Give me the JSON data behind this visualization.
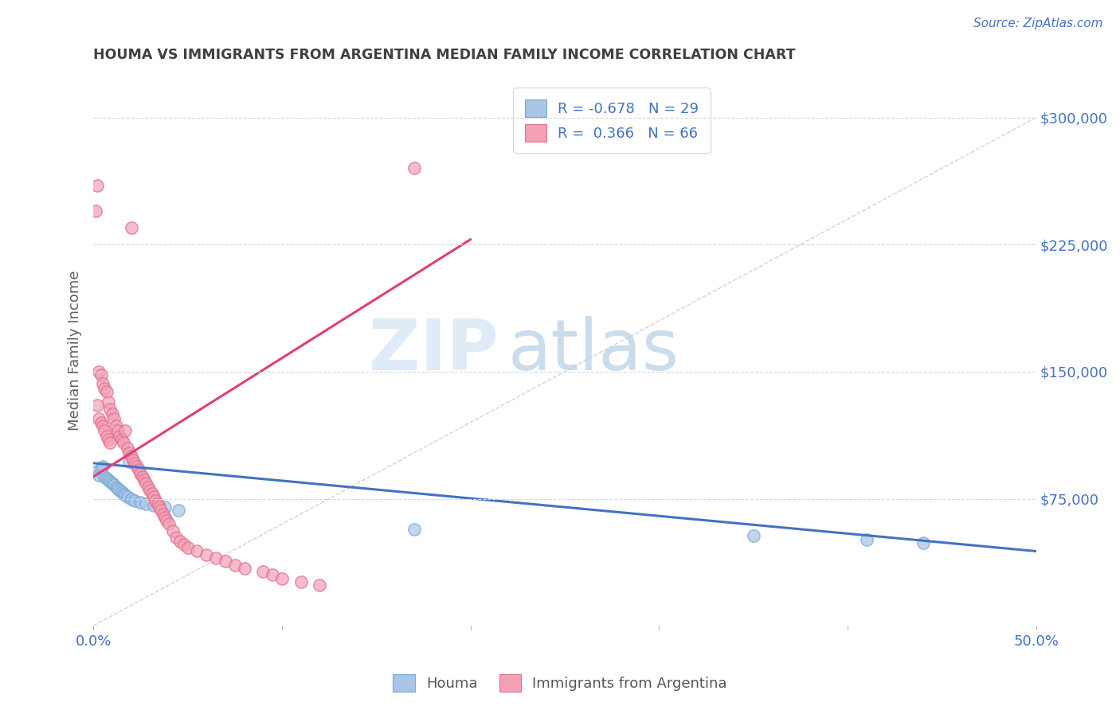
{
  "title": "HOUMA VS IMMIGRANTS FROM ARGENTINA MEDIAN FAMILY INCOME CORRELATION CHART",
  "source_text": "Source: ZipAtlas.com",
  "ylabel": "Median Family Income",
  "watermark_zip": "ZIP",
  "watermark_atlas": "atlas",
  "xlim": [
    0.0,
    0.5
  ],
  "ylim": [
    0,
    325000
  ],
  "xticks": [
    0.0,
    0.1,
    0.2,
    0.3,
    0.4,
    0.5
  ],
  "xticklabels": [
    "0.0%",
    "",
    "",
    "",
    "",
    "50.0%"
  ],
  "ytick_positions": [
    0,
    75000,
    150000,
    225000,
    300000
  ],
  "ytick_labels": [
    "",
    "$75,000",
    "$150,000",
    "$225,000",
    "$300,000"
  ],
  "houma_color": "#a8c4e6",
  "houma_edge_color": "#7aaad0",
  "argentina_color": "#f4a0b5",
  "argentina_edge_color": "#e07090",
  "houma_line_color": "#4472c4",
  "argentina_line_color": "#e04070",
  "ref_line_color": "#c8c8c8",
  "legend_R_houma": "-0.678",
  "legend_N_houma": "29",
  "legend_R_argentina": "0.366",
  "legend_N_argentina": "66",
  "legend_label_houma": "Houma",
  "legend_label_argentina": "Immigrants from Argentina",
  "houma_scatter_x": [
    0.002,
    0.003,
    0.004,
    0.005,
    0.006,
    0.007,
    0.008,
    0.009,
    0.01,
    0.011,
    0.012,
    0.013,
    0.014,
    0.015,
    0.016,
    0.017,
    0.018,
    0.019,
    0.02,
    0.022,
    0.025,
    0.028,
    0.032,
    0.038,
    0.045,
    0.17,
    0.35,
    0.41,
    0.44
  ],
  "houma_scatter_y": [
    91000,
    89000,
    93000,
    94000,
    88000,
    87000,
    86000,
    85000,
    84000,
    83000,
    82000,
    81000,
    80000,
    79000,
    78000,
    77000,
    76000,
    97000,
    75000,
    74000,
    73000,
    72000,
    71000,
    70000,
    68000,
    57000,
    53000,
    51000,
    49000
  ],
  "argentina_scatter_x": [
    0.001,
    0.002,
    0.003,
    0.004,
    0.005,
    0.006,
    0.007,
    0.008,
    0.009,
    0.01,
    0.011,
    0.012,
    0.013,
    0.014,
    0.015,
    0.016,
    0.017,
    0.018,
    0.019,
    0.02,
    0.021,
    0.022,
    0.023,
    0.024,
    0.025,
    0.026,
    0.027,
    0.028,
    0.029,
    0.03,
    0.031,
    0.032,
    0.033,
    0.034,
    0.035,
    0.036,
    0.037,
    0.038,
    0.039,
    0.04,
    0.042,
    0.044,
    0.046,
    0.048,
    0.05,
    0.055,
    0.06,
    0.065,
    0.07,
    0.075,
    0.08,
    0.09,
    0.095,
    0.1,
    0.11,
    0.12,
    0.002,
    0.003,
    0.004,
    0.005,
    0.006,
    0.007,
    0.008,
    0.009,
    0.02,
    0.17
  ],
  "argentina_scatter_y": [
    245000,
    260000,
    150000,
    148000,
    143000,
    140000,
    138000,
    132000,
    128000,
    125000,
    122000,
    118000,
    115000,
    112000,
    110000,
    108000,
    115000,
    105000,
    102000,
    100000,
    98000,
    96000,
    94000,
    92000,
    90000,
    88000,
    86000,
    84000,
    82000,
    80000,
    78000,
    76000,
    74000,
    72000,
    70000,
    68000,
    66000,
    64000,
    62000,
    60000,
    56000,
    52000,
    50000,
    48000,
    46000,
    44000,
    42000,
    40000,
    38000,
    36000,
    34000,
    32000,
    30000,
    28000,
    26000,
    24000,
    130000,
    122000,
    120000,
    118000,
    115000,
    112000,
    110000,
    108000,
    235000,
    270000
  ],
  "background_color": "#ffffff",
  "grid_color": "#d8d8d8",
  "title_color": "#404040",
  "axis_label_color": "#606060",
  "ytick_color": "#4472c4",
  "xtick_color": "#4472c4",
  "houma_trend_x": [
    0.0,
    0.5
  ],
  "houma_trend_y": [
    96000,
    44000
  ],
  "argentina_trend_x": [
    0.0,
    0.2
  ],
  "argentina_trend_y": [
    88000,
    228000
  ]
}
